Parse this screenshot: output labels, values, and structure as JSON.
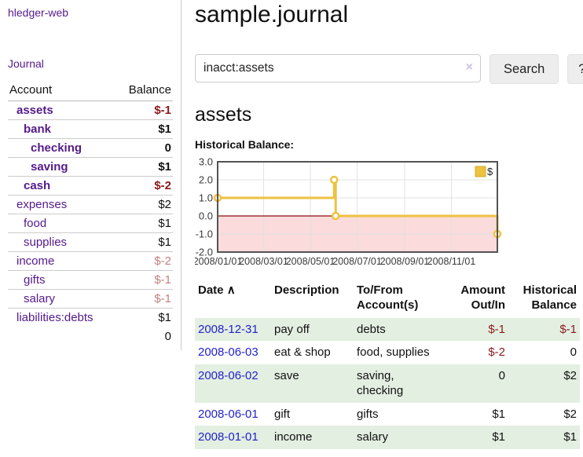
{
  "sidebar": {
    "brand": "hledger-web",
    "journal_link": "Journal",
    "accounts_table": {
      "headers": {
        "account": "Account",
        "balance": "Balance"
      },
      "rows": [
        {
          "name": "assets",
          "indent": 1,
          "bold": true,
          "balance": "$-1",
          "balance_class": "neg-strong"
        },
        {
          "name": "bank",
          "indent": 2,
          "bold": true,
          "balance": "$1",
          "balance_class": ""
        },
        {
          "name": "checking",
          "indent": 3,
          "bold": true,
          "balance": "0",
          "balance_class": ""
        },
        {
          "name": "saving",
          "indent": 3,
          "bold": true,
          "balance": "$1",
          "balance_class": ""
        },
        {
          "name": "cash",
          "indent": 2,
          "bold": true,
          "balance": "$-2",
          "balance_class": "neg-strong"
        },
        {
          "name": "expenses",
          "indent": 1,
          "bold": false,
          "balance": "$2",
          "balance_class": ""
        },
        {
          "name": "food",
          "indent": 2,
          "bold": false,
          "balance": "$1",
          "balance_class": ""
        },
        {
          "name": "supplies",
          "indent": 2,
          "bold": false,
          "balance": "$1",
          "balance_class": ""
        },
        {
          "name": "income",
          "indent": 1,
          "bold": false,
          "balance": "$-2",
          "balance_class": "neg-soft"
        },
        {
          "name": "gifts",
          "indent": 2,
          "bold": false,
          "balance": "$-1",
          "balance_class": "neg-soft"
        },
        {
          "name": "salary",
          "indent": 2,
          "bold": false,
          "link_class": "blue",
          "balance": "$-1",
          "balance_class": "neg-soft"
        },
        {
          "name": "liabilities:debts",
          "indent": 1,
          "bold": false,
          "balance": "$1",
          "balance_class": ""
        }
      ],
      "total": "0"
    }
  },
  "main": {
    "title": "sample.journal",
    "search": {
      "value": "inacct:assets",
      "clear_icon": "×",
      "button": "Search",
      "help_button": "?"
    },
    "account_heading": "assets",
    "chart_label": "Historical Balance:",
    "register_table": {
      "headers": {
        "date": "Date",
        "sort_indicator": "∧",
        "description": "Description",
        "accounts_line1": "To/From",
        "accounts_line2": "Account(s)",
        "amount_line1": "Amount",
        "amount_line2": "Out/In",
        "balance_line1": "Historical",
        "balance_line2": "Balance"
      },
      "rows": [
        {
          "date": "2008-12-31",
          "description": "pay off",
          "accounts": "debts",
          "amount": "$-1",
          "amount_class": "neg-strong",
          "balance": "$-1",
          "balance_class": "neg-strong",
          "shaded": true
        },
        {
          "date": "2008-06-03",
          "description": "eat & shop",
          "accounts": "food, supplies",
          "amount": "$-2",
          "amount_class": "neg-strong",
          "balance": "0",
          "balance_class": "",
          "shaded": false
        },
        {
          "date": "2008-06-02",
          "description": "save",
          "accounts": "saving, checking",
          "amount": "0",
          "amount_class": "",
          "balance": "$2",
          "balance_class": "",
          "shaded": true
        },
        {
          "date": "2008-06-01",
          "description": "gift",
          "accounts": "gifts",
          "amount": "$1",
          "amount_class": "",
          "balance": "$2",
          "balance_class": "",
          "shaded": false
        },
        {
          "date": "2008-01-01",
          "description": "income",
          "accounts": "salary",
          "amount": "$1",
          "amount_class": "",
          "balance": "$1",
          "balance_class": "",
          "shaded": true
        }
      ]
    }
  },
  "chart_data": {
    "type": "line",
    "title": "Historical Balance",
    "legend": "$",
    "legend_position": "top-right",
    "step": true,
    "series": [
      {
        "name": "$",
        "points": [
          [
            "2008-01-01",
            1
          ],
          [
            "2008-06-01",
            2
          ],
          [
            "2008-06-03",
            0
          ],
          [
            "2008-12-31",
            -1
          ]
        ]
      }
    ],
    "xlim": [
      "2008-01-01",
      "2008-12-31"
    ],
    "ylim": [
      -2,
      3
    ],
    "y_ticks": [
      3,
      2,
      1,
      0,
      -1,
      -2
    ],
    "y_tick_labels": [
      "3.0",
      "2.0",
      "1.0",
      "0.0",
      "-1.0",
      "-2.0"
    ],
    "x_ticks": [
      "2008-01-01",
      "2008-03-01",
      "2008-05-01",
      "2008-07-01",
      "2008-09-01",
      "2008-11-01"
    ],
    "x_tick_labels": [
      "2008/01/01",
      "2008/03/01",
      "2008/05/01",
      "2008/07/01",
      "2008/09/01",
      "2008/11/01"
    ],
    "grid": true,
    "colors": {
      "line": "#edc240",
      "marker_fill": "#ffffff",
      "legend_border": "#cfa92c",
      "negative_region": "#fbdbdb",
      "zero_line": "#8b1111",
      "border": "#545454",
      "grid": "#e2e2e2",
      "tick_text": "#3a3a3a"
    }
  }
}
